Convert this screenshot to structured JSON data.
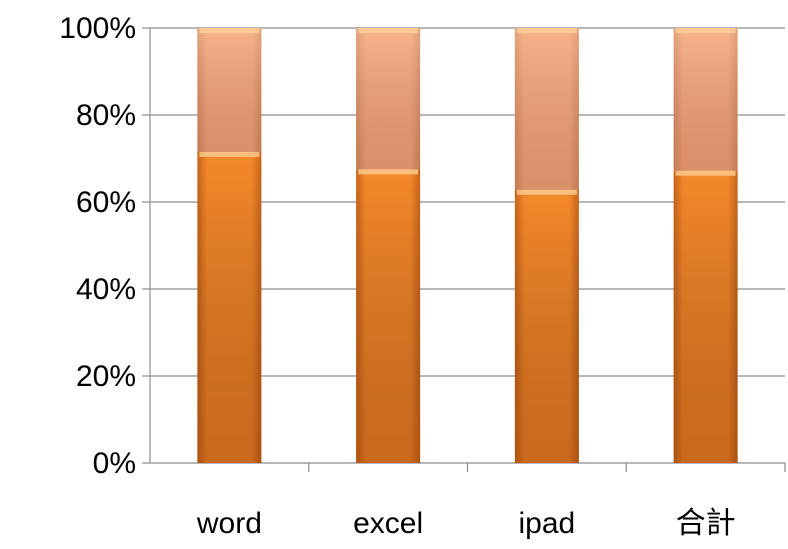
{
  "chart_data": {
    "type": "bar",
    "stacked": true,
    "normalized": true,
    "categories": [
      "word",
      "excel",
      "ipad",
      "合計"
    ],
    "series": [
      {
        "values": [
          71.5,
          67.5,
          62.8,
          67.2
        ],
        "color": "#f5892a"
      },
      {
        "values": [
          28.5,
          32.5,
          37.2,
          32.8
        ],
        "color": "#f2a57e"
      }
    ],
    "y_ticks": [
      "0%",
      "20%",
      "40%",
      "60%",
      "80%",
      "100%"
    ],
    "ylim": [
      0,
      100
    ],
    "grid": true,
    "legend": "none",
    "title": "",
    "xlabel": "",
    "ylabel": ""
  }
}
